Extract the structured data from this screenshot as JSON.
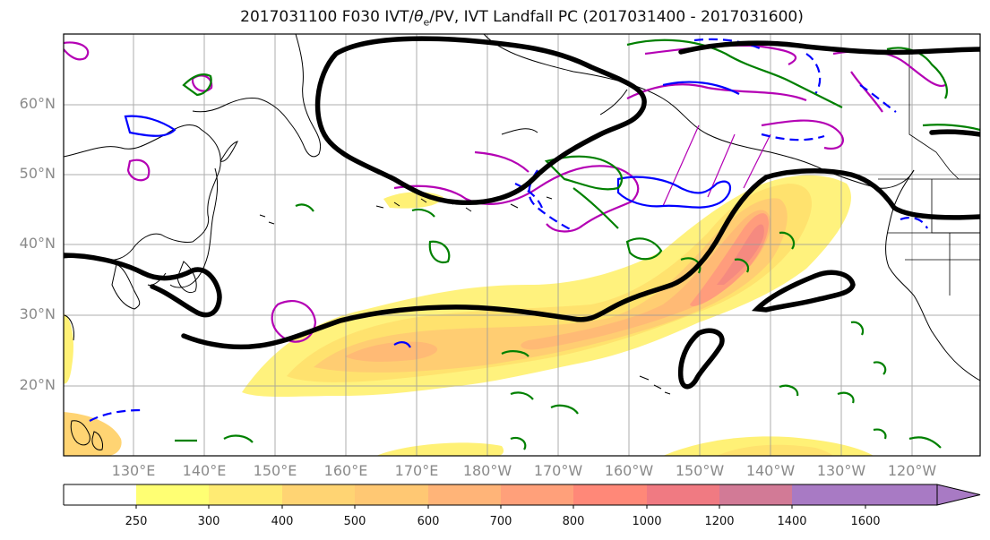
{
  "title_prefix": "2017031100 F030 IVT/",
  "title_theta": "θ",
  "title_sub": "e",
  "title_suffix": "/PV, IVT Landfall PC (2017031400 - 2017031600)",
  "lat_labels": [
    "60°N",
    "50°N",
    "40°N",
    "30°N",
    "20°N"
  ],
  "lon_labels": [
    "130°E",
    "140°E",
    "150°E",
    "160°E",
    "170°E",
    "180°W",
    "170°W",
    "160°W",
    "150°W",
    "140°W",
    "130°W",
    "120°W"
  ],
  "colorbar": {
    "tick_labels": [
      "250",
      "300",
      "400",
      "500",
      "600",
      "700",
      "800",
      "1000",
      "1200",
      "1400",
      "1600"
    ],
    "colors": [
      "#ffffff",
      "#ffff73",
      "#ffeb73",
      "#ffd473",
      "#ffc873",
      "#ffb478",
      "#ffa07a",
      "#ff8878",
      "#f07a82",
      "#d27a96",
      "#a87ac4"
    ]
  },
  "contour_colors": {
    "landfall_pc": "#000000",
    "theta_e": "#0000ff",
    "pv": "#b400b4",
    "secondary": "#008000",
    "coastline": "#000000"
  }
}
